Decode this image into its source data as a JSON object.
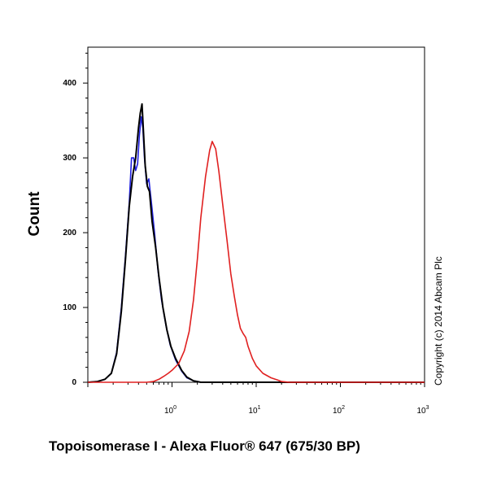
{
  "chart_data": {
    "type": "line",
    "title": "",
    "xlabel": "Topoisomerase I - Alexa Fluor® 647 (675/30 BP)",
    "ylabel": "Count",
    "x_scale": "log",
    "xlim": [
      0.1,
      1000
    ],
    "ylim": [
      0,
      400
    ],
    "yticks": [
      "0",
      "100",
      "200",
      "300",
      "400"
    ],
    "xticks": [
      {
        "base": "10",
        "exp": "0",
        "value": 1
      },
      {
        "base": "10",
        "exp": "1",
        "value": 10
      },
      {
        "base": "10",
        "exp": "2",
        "value": 100
      },
      {
        "base": "10",
        "exp": "3",
        "value": 1000
      }
    ],
    "grid": false,
    "annotation": "Copyright (c) 2014 Abcam Plc",
    "series": [
      {
        "color": "#2020e0",
        "points": [
          [
            0.1,
            0
          ],
          [
            0.13,
            1
          ],
          [
            0.16,
            4
          ],
          [
            0.19,
            12
          ],
          [
            0.22,
            40
          ],
          [
            0.25,
            100
          ],
          [
            0.28,
            170
          ],
          [
            0.31,
            240
          ],
          [
            0.33,
            300
          ],
          [
            0.35,
            300
          ],
          [
            0.37,
            283
          ],
          [
            0.39,
            292
          ],
          [
            0.41,
            330
          ],
          [
            0.43,
            355
          ],
          [
            0.45,
            340
          ],
          [
            0.47,
            300
          ],
          [
            0.5,
            265
          ],
          [
            0.53,
            272
          ],
          [
            0.57,
            240
          ],
          [
            0.62,
            200
          ],
          [
            0.68,
            150
          ],
          [
            0.75,
            110
          ],
          [
            0.85,
            75
          ],
          [
            0.95,
            50
          ],
          [
            1.1,
            30
          ],
          [
            1.3,
            15
          ],
          [
            1.5,
            6
          ],
          [
            1.8,
            2
          ],
          [
            2.2,
            0
          ],
          [
            1000,
            0
          ]
        ]
      },
      {
        "color": "#000000",
        "points": [
          [
            0.1,
            0
          ],
          [
            0.13,
            1
          ],
          [
            0.16,
            4
          ],
          [
            0.19,
            12
          ],
          [
            0.22,
            38
          ],
          [
            0.25,
            95
          ],
          [
            0.28,
            165
          ],
          [
            0.31,
            235
          ],
          [
            0.34,
            275
          ],
          [
            0.37,
            300
          ],
          [
            0.4,
            340
          ],
          [
            0.42,
            360
          ],
          [
            0.44,
            372
          ],
          [
            0.46,
            330
          ],
          [
            0.48,
            290
          ],
          [
            0.51,
            262
          ],
          [
            0.54,
            255
          ],
          [
            0.58,
            215
          ],
          [
            0.64,
            180
          ],
          [
            0.7,
            140
          ],
          [
            0.78,
            100
          ],
          [
            0.87,
            70
          ],
          [
            0.97,
            48
          ],
          [
            1.1,
            32
          ],
          [
            1.3,
            16
          ],
          [
            1.5,
            7
          ],
          [
            1.8,
            2
          ],
          [
            2.2,
            0
          ],
          [
            1000,
            0
          ]
        ]
      },
      {
        "color": "#e02020",
        "points": [
          [
            0.1,
            0
          ],
          [
            0.5,
            0
          ],
          [
            0.6,
            1
          ],
          [
            0.7,
            4
          ],
          [
            0.8,
            8
          ],
          [
            0.9,
            12
          ],
          [
            1.0,
            16
          ],
          [
            1.2,
            25
          ],
          [
            1.4,
            42
          ],
          [
            1.6,
            68
          ],
          [
            1.8,
            110
          ],
          [
            2.0,
            165
          ],
          [
            2.2,
            220
          ],
          [
            2.5,
            275
          ],
          [
            2.8,
            310
          ],
          [
            3.0,
            322
          ],
          [
            3.3,
            312
          ],
          [
            3.6,
            282
          ],
          [
            4.0,
            238
          ],
          [
            4.5,
            190
          ],
          [
            5.0,
            145
          ],
          [
            5.5,
            115
          ],
          [
            6.0,
            90
          ],
          [
            6.5,
            72
          ],
          [
            7.0,
            65
          ],
          [
            7.5,
            60
          ],
          [
            8.0,
            48
          ],
          [
            9.0,
            32
          ],
          [
            10.0,
            22
          ],
          [
            12.0,
            12
          ],
          [
            15.0,
            6
          ],
          [
            18.0,
            3
          ],
          [
            20.0,
            1
          ],
          [
            25.0,
            0
          ],
          [
            1000,
            0
          ]
        ]
      }
    ]
  }
}
